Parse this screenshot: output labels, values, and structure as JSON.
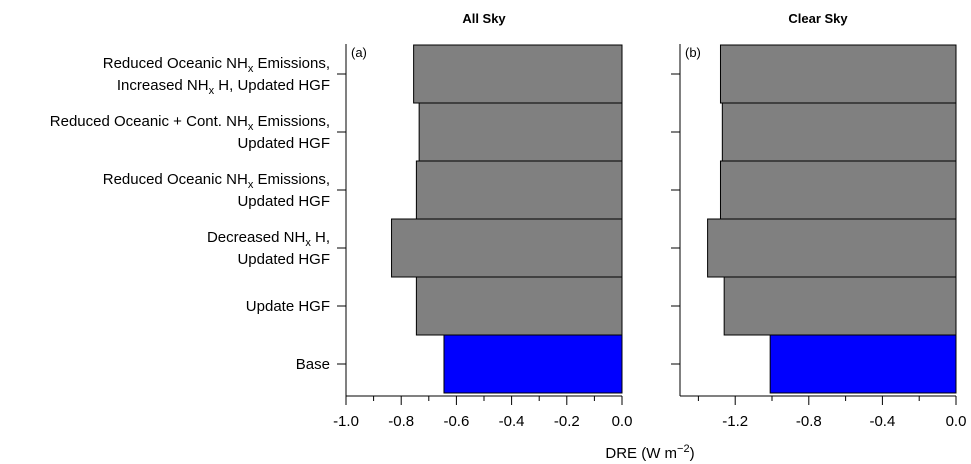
{
  "chart_data": {
    "type": "bar",
    "orientation": "horizontal",
    "xlabel_parts": [
      "DRE (W m",
      "−2",
      ")"
    ],
    "categories": [
      {
        "lines": [
          [
            {
              "t": "Reduced Oceanic NH"
            },
            {
              "t": "x",
              "sub": true
            },
            {
              "t": " Emissions,"
            }
          ],
          [
            {
              "t": "Increased NH"
            },
            {
              "t": "x",
              "sub": true
            },
            {
              "t": " H, Updated HGF"
            }
          ]
        ]
      },
      {
        "lines": [
          [
            {
              "t": "Reduced Oceanic + Cont. NH"
            },
            {
              "t": "x",
              "sub": true
            },
            {
              "t": " Emissions,"
            }
          ],
          [
            {
              "t": "Updated HGF"
            }
          ]
        ]
      },
      {
        "lines": [
          [
            {
              "t": "Reduced Oceanic NH"
            },
            {
              "t": "x",
              "sub": true
            },
            {
              "t": " Emissions,"
            }
          ],
          [
            {
              "t": "Updated HGF"
            }
          ]
        ]
      },
      {
        "lines": [
          [
            {
              "t": "Decreased NH"
            },
            {
              "t": "x",
              "sub": true
            },
            {
              "t": " H,"
            }
          ],
          [
            {
              "t": "Updated HGF"
            }
          ]
        ]
      },
      {
        "lines": [
          [
            {
              "t": "Update HGF"
            }
          ]
        ]
      },
      {
        "lines": [
          [
            {
              "t": "Base"
            }
          ]
        ]
      }
    ],
    "bar_colors": [
      "#808080",
      "#808080",
      "#808080",
      "#808080",
      "#808080",
      "#0000ff"
    ],
    "panels": [
      {
        "title": "All Sky",
        "tag": "(a)",
        "xlim": [
          -1.0,
          0.0
        ],
        "ticks": [
          -1.0,
          -0.8,
          -0.6,
          -0.4,
          -0.2,
          0.0
        ],
        "tick_labels": [
          "-1.0",
          "-0.8",
          "-0.6",
          "-0.4",
          "-0.2",
          "0.0"
        ],
        "minor_ticks": [
          -0.9,
          -0.7,
          -0.5,
          -0.3,
          -0.1
        ],
        "values": [
          -0.755,
          -0.735,
          -0.745,
          -0.835,
          -0.745,
          -0.645
        ]
      },
      {
        "title": "Clear Sky",
        "tag": "(b)",
        "xlim": [
          -1.5,
          0.0
        ],
        "ticks": [
          -1.2,
          -0.8,
          -0.4,
          0.0
        ],
        "tick_labels": [
          "-1.2",
          "-0.8",
          "-0.4",
          "0.0"
        ],
        "minor_ticks": [
          -1.4,
          -1.0,
          -0.6,
          -0.2
        ],
        "values": [
          -1.28,
          -1.27,
          -1.28,
          -1.35,
          -1.26,
          -1.01
        ]
      }
    ]
  }
}
